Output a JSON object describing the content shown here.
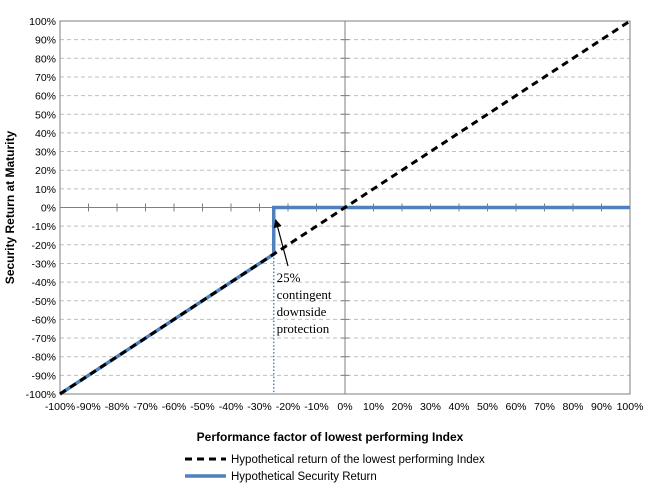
{
  "chart_data": {
    "type": "line",
    "title": "",
    "xlabel": "Performance factor of lowest performing Index",
    "ylabel": "Security Return at Maturity",
    "xlim": [
      -100,
      100
    ],
    "ylim": [
      -100,
      100
    ],
    "x_ticks": [
      -100,
      -90,
      -80,
      -70,
      -60,
      -50,
      -40,
      -30,
      -20,
      -10,
      0,
      10,
      20,
      30,
      40,
      50,
      60,
      70,
      80,
      90,
      100
    ],
    "x_tick_labels": [
      "-100%",
      "-90%",
      "-80%",
      "-70%",
      "-60%",
      "-50%",
      "-40%",
      "-30%",
      "-20%",
      "-10%",
      "0%",
      "10%",
      "20%",
      "30%",
      "40%",
      "50%",
      "60%",
      "70%",
      "80%",
      "90%",
      "100%"
    ],
    "y_ticks": [
      100,
      90,
      80,
      70,
      60,
      50,
      40,
      30,
      20,
      10,
      0,
      -10,
      -20,
      -30,
      -40,
      -50,
      -60,
      -70,
      -80,
      -90,
      -100
    ],
    "y_tick_labels": [
      "100%",
      "90%",
      "80%",
      "70%",
      "60%",
      "50%",
      "40%",
      "30%",
      "20%",
      "10%",
      "0%",
      "-10%",
      "-20%",
      "-30%",
      "-40%",
      "-50%",
      "-60%",
      "-70%",
      "-80%",
      "-90%",
      "-100%"
    ],
    "grid": true,
    "legend_position": "bottom",
    "series": [
      {
        "name": "Hypothetical return of the lowest performing Index",
        "style": "dashed",
        "color": "#000000",
        "x": [
          -100,
          100
        ],
        "y": [
          -100,
          100
        ]
      },
      {
        "name": "Hypothetical Security Return",
        "style": "solid",
        "color": "#4f81bd",
        "x": [
          -100,
          -25,
          -25,
          100
        ],
        "y": [
          -100,
          -25,
          0,
          0
        ]
      }
    ],
    "reference_line": {
      "x": -25,
      "style": "dotted",
      "color": "#4f81bd"
    },
    "annotation": {
      "lines": [
        "25%",
        "contingent",
        "downside",
        "protection"
      ],
      "arrow_to": [
        -25,
        -12
      ]
    }
  }
}
